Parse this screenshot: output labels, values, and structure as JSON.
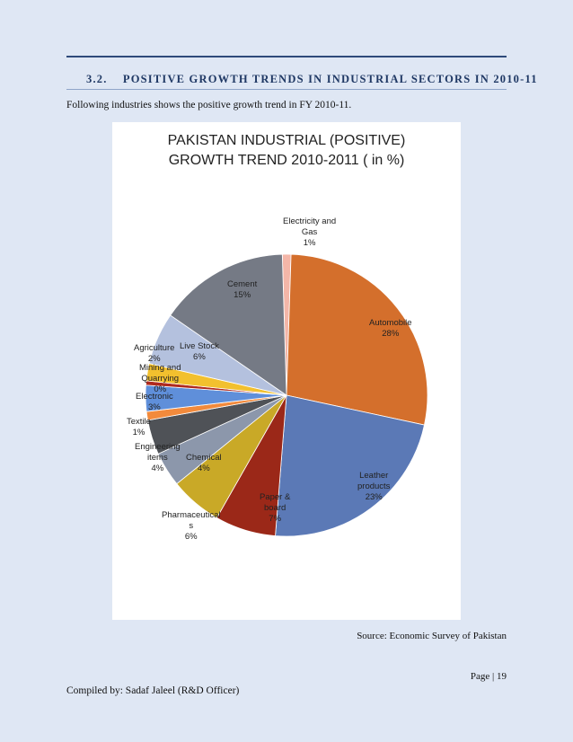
{
  "section": {
    "number": "3.2.",
    "title": "POSITIVE GROWTH TRENDS IN INDUSTRIAL SECTORS IN 2010-11",
    "intro": "Following industries shows the positive growth trend in FY 2010-11."
  },
  "chart_data": {
    "type": "pie",
    "title_line1": "PAKISTAN INDUSTRIAL (POSITIVE)",
    "title_line2": "GROWTH TREND 2010-2011 ( in %)",
    "slices": [
      {
        "name": "Electricity and Gas",
        "label_lines": [
          "Electricity and",
          "Gas"
        ],
        "pct_label": "1%",
        "value": 1,
        "color": "#f4b6a8"
      },
      {
        "name": "Automobile",
        "label_lines": [
          "Automobile"
        ],
        "pct_label": "28%",
        "value": 28,
        "color": "#d46f2c"
      },
      {
        "name": "Leather products",
        "label_lines": [
          "Leather",
          "products"
        ],
        "pct_label": "23%",
        "value": 23,
        "color": "#5b79b6"
      },
      {
        "name": "Paper & board",
        "label_lines": [
          "Paper &",
          "board"
        ],
        "pct_label": "7%",
        "value": 7,
        "color": "#9b2818"
      },
      {
        "name": "Pharmaceuticals",
        "label_lines": [
          "Pharmaceutical",
          "s"
        ],
        "pct_label": "6%",
        "value": 6,
        "color": "#c9a927"
      },
      {
        "name": "Chemical",
        "label_lines": [
          "Chemical"
        ],
        "pct_label": "4%",
        "value": 4,
        "color": "#8c97ab"
      },
      {
        "name": "Engineering items",
        "label_lines": [
          "Engineering",
          "items"
        ],
        "pct_label": "4%",
        "value": 4,
        "color": "#4f5257"
      },
      {
        "name": "Textile",
        "label_lines": [
          "Textile"
        ],
        "pct_label": "1%",
        "value": 1,
        "color": "#f28a3c"
      },
      {
        "name": "Electronic",
        "label_lines": [
          "Electronic"
        ],
        "pct_label": "3%",
        "value": 3,
        "color": "#5f8fda"
      },
      {
        "name": "Mining and Quarrying",
        "label_lines": [
          "Mining and",
          "Quarrying"
        ],
        "pct_label": "0%",
        "value": 0.5,
        "color": "#b02a1e"
      },
      {
        "name": "Agriculture",
        "label_lines": [
          "Agriculture"
        ],
        "pct_label": "2%",
        "value": 2,
        "color": "#f2c02e"
      },
      {
        "name": "Live Stock",
        "label_lines": [
          "Live Stock"
        ],
        "pct_label": "6%",
        "value": 6,
        "color": "#b4c1de"
      },
      {
        "name": "Cement",
        "label_lines": [
          "Cement"
        ],
        "pct_label": "15%",
        "value": 15,
        "color": "#757a85"
      }
    ]
  },
  "source": "Source: Economic Survey of Pakistan",
  "page_number": "Page | 19",
  "compiled_by": "Compiled by: Sadaf Jaleel (R&D Officer)"
}
